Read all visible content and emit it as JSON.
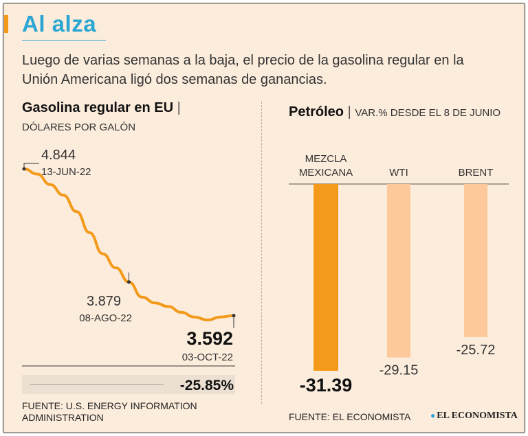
{
  "header": {
    "title": "Al alza",
    "subtitle": "Luego de varias semanas a la baja, el precio de la gasolina regular en la Unión Americana ligó dos semanas de ganancias."
  },
  "left_panel": {
    "heading": "Gasolina regular en EU",
    "separator": "|",
    "unit": "DÓLARES POR GALÓN",
    "source": "FUENTE: U.S. ENERGY INFORMATION ADMINISTRATION",
    "change_label": "-25.85%"
  },
  "right_panel": {
    "heading": "Petróleo",
    "separator": "|",
    "unit": "VAR.% DESDE EL 8 DE JUNIO",
    "source": "FUENTE: EL ECONOMISTA"
  },
  "logo": {
    "text": "EL ECONOMISTA",
    "icon": "globe-icon"
  },
  "colors": {
    "accent": "#f39a1b",
    "title": "#2aa6d2",
    "background": "#fcecdc",
    "bar_highlight": "#f39a1b",
    "bar_muted": "#fdc99a"
  },
  "chart_data": [
    {
      "type": "line",
      "title": "Gasolina regular en EU",
      "ylabel": "DÓLARES POR GALÓN",
      "x": [
        0,
        1,
        2,
        3,
        4,
        5,
        6,
        7,
        8,
        9,
        10,
        11,
        12,
        13,
        14,
        15,
        16
      ],
      "values": [
        4.844,
        4.8,
        4.71,
        4.62,
        4.48,
        4.3,
        4.12,
        4.0,
        3.879,
        3.75,
        3.7,
        3.67,
        3.62,
        3.58,
        3.555,
        3.58,
        3.592
      ],
      "ylim": [
        3.5,
        4.9
      ],
      "annotations": [
        {
          "index": 0,
          "value": "4.844",
          "date": "13-JUN-22"
        },
        {
          "index": 8,
          "value": "3.879",
          "date": "08-AGO-22"
        },
        {
          "index": 16,
          "value": "3.592",
          "date": "03-OCT-22"
        }
      ],
      "change": "-25.85%"
    },
    {
      "type": "bar",
      "title": "Petróleo",
      "categories": [
        "MEZCLA MEXICANA",
        "WTI",
        "BRENT"
      ],
      "values": [
        -31.39,
        -29.15,
        -25.72
      ],
      "labels": [
        "-31.39",
        "-29.15",
        "-25.72"
      ],
      "ylim": [
        -33,
        0
      ]
    }
  ]
}
